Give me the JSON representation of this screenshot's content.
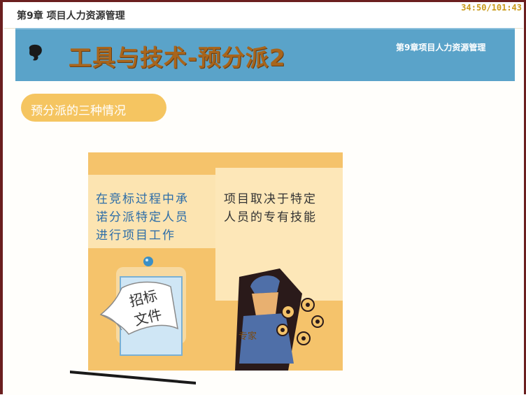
{
  "header": {
    "chapter_label": "第9章 项目人力资源管理",
    "timer": "34:50/101:43"
  },
  "banner": {
    "title": "工具与技术-预分派2",
    "subtitle": "第9章项目人力资源管理",
    "colors": {
      "background": "#5aa3c9",
      "title": "#a8651c"
    }
  },
  "section": {
    "pill_label": "预分派的三种情况",
    "colors": {
      "pill": "#f5c561"
    }
  },
  "panels": [
    {
      "text_lines": [
        "在竞标过程中承",
        "诺分派特定人员",
        "进行项目工作"
      ],
      "image_label_lines": [
        "招标",
        "文件"
      ],
      "icon": "bid-document-icon"
    },
    {
      "text_lines": [
        "项目取决于特定",
        "人员的专有技能"
      ],
      "image_label": "专家",
      "icon": "expert-worker-icon"
    }
  ]
}
